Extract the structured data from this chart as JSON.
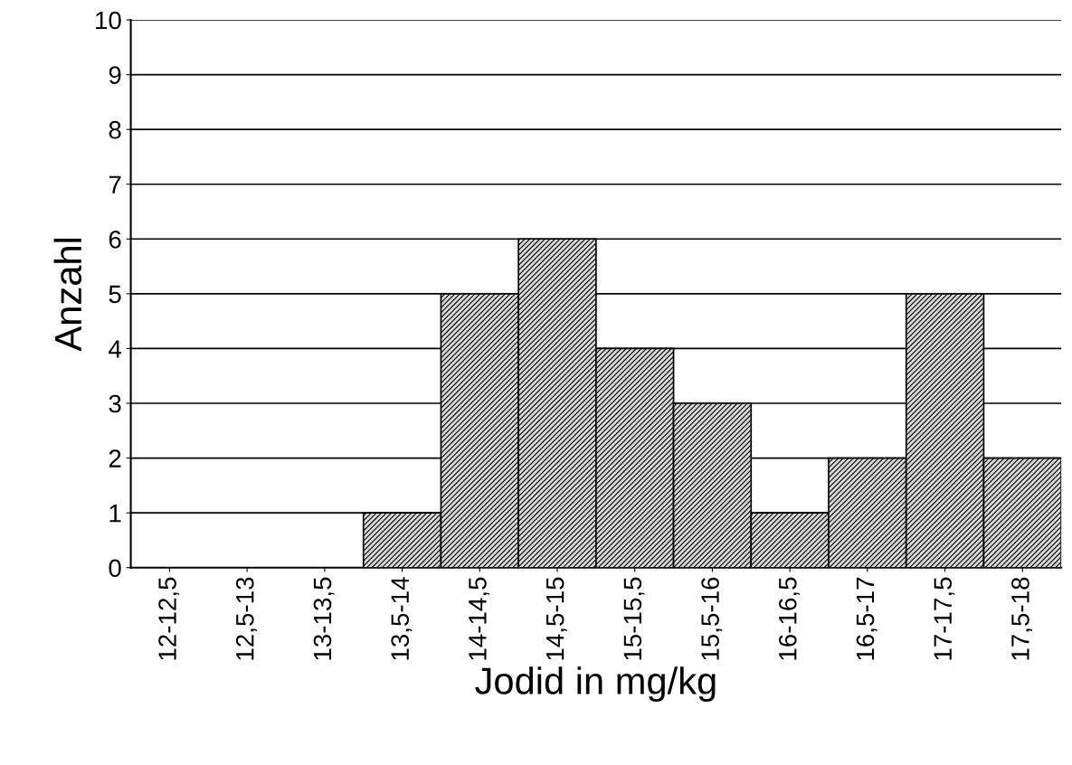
{
  "chart_data": {
    "type": "bar",
    "xlabel": "Jodid in mg/kg",
    "ylabel": "Anzahl",
    "categories": [
      "12-12,5",
      "12,5-13",
      "13-13,5",
      "13,5-14",
      "14-14,5",
      "14,5-15",
      "15-15,5",
      "15,5-16",
      "16-16,5",
      "16,5-17",
      "17-17,5",
      "17,5-18"
    ],
    "values": [
      0,
      0,
      0,
      1,
      5,
      6,
      4,
      3,
      1,
      2,
      5,
      2
    ],
    "color": "#000000",
    "ylim": [
      0,
      10
    ],
    "yticks": [
      0,
      1,
      2,
      3,
      4,
      5,
      6,
      7,
      8,
      9,
      10
    ],
    "grid": "y"
  }
}
